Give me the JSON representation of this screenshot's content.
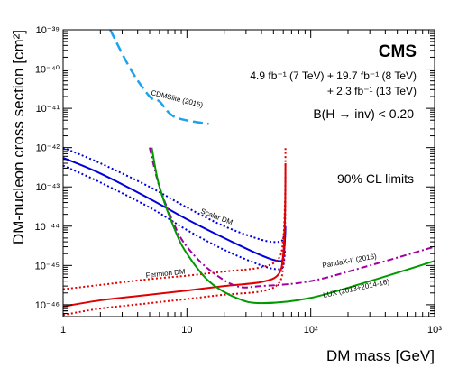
{
  "chart_data": {
    "type": "line",
    "title": "CMS",
    "xlabel": "DM mass [GeV]",
    "ylabel": "DM-nucleon cross section [cm²]",
    "xscale": "log",
    "yscale": "log",
    "xlim": [
      1,
      1000
    ],
    "ylim": [
      5e-47,
      1e-39
    ],
    "x_ticks": [
      1,
      10,
      100,
      1000
    ],
    "x_tick_labels": [
      "1",
      "10",
      "10²",
      "10³"
    ],
    "y_ticks": [
      1e-46,
      1e-45,
      1e-44,
      1e-43,
      1e-42,
      1e-41,
      1e-40,
      1e-39
    ],
    "y_tick_labels": [
      "10⁻⁴⁶",
      "10⁻⁴⁵",
      "10⁻⁴⁴",
      "10⁻⁴³",
      "10⁻⁴²",
      "10⁻⁴¹",
      "10⁻⁴⁰",
      "10⁻³⁹"
    ],
    "grid": false,
    "annotations": {
      "lumi_line1": "4.9 fb⁻¹ (7 TeV) + 19.7 fb⁻¹ (8 TeV)",
      "lumi_line2": "+ 2.3 fb⁻¹ (13 TeV)",
      "hinv": "B(H → inv) < 0.20",
      "cl": "90% CL limits"
    },
    "series": [
      {
        "name": "Scalar DM",
        "color": "#0000dd",
        "style": "solid",
        "x": [
          1,
          2,
          5,
          10,
          20,
          40,
          55,
          60,
          62,
          62.5
        ],
        "y": [
          5.5e-43,
          2.2e-43,
          5e-44,
          1.5e-44,
          5e-45,
          1.8e-45,
          1.3e-45,
          1.6e-45,
          5e-45,
          1e-44
        ]
      },
      {
        "name": "Scalar DM upper",
        "color": "#0000dd",
        "style": "dotted",
        "x": [
          1,
          2,
          5,
          10,
          20,
          40,
          55,
          60,
          62
        ],
        "y": [
          1e-42,
          4e-43,
          1e-43,
          3e-44,
          1e-44,
          4.5e-45,
          4e-45,
          5e-45,
          1e-44
        ]
      },
      {
        "name": "Scalar DM lower",
        "color": "#0000dd",
        "style": "dotted",
        "x": [
          1,
          2,
          5,
          10,
          20,
          40,
          55,
          60,
          62
        ],
        "y": [
          3.5e-43,
          1.3e-43,
          3e-44,
          8e-45,
          2.5e-45,
          1e-45,
          8e-46,
          1e-45,
          2.5e-45
        ]
      },
      {
        "name": "Fermion DM",
        "color": "#e00000",
        "style": "solid",
        "x": [
          1,
          2,
          5,
          10,
          20,
          40,
          55,
          60,
          62,
          62.5
        ],
        "y": [
          9e-47,
          1.3e-46,
          1.8e-46,
          2.3e-46,
          3e-46,
          3.8e-46,
          6e-46,
          2e-45,
          2e-44,
          4e-43
        ]
      },
      {
        "name": "Fermion DM upper",
        "color": "#e00000",
        "style": "dotted",
        "x": [
          1,
          2,
          5,
          10,
          20,
          40,
          55,
          60,
          62,
          62.5
        ],
        "y": [
          2.5e-46,
          3.2e-46,
          4.5e-46,
          5.5e-46,
          7e-46,
          9e-46,
          1.5e-45,
          5e-45,
          5e-44,
          1e-42
        ]
      },
      {
        "name": "Fermion DM lower",
        "color": "#e00000",
        "style": "dotted",
        "x": [
          1,
          2,
          5,
          10,
          20,
          40,
          55,
          60,
          62,
          62.5
        ],
        "y": [
          5.5e-47,
          8e-47,
          1.1e-46,
          1.4e-46,
          1.8e-46,
          2.2e-46,
          3.5e-46,
          1e-45,
          1e-44,
          2e-43
        ]
      },
      {
        "name": "CDMSlite (2015)",
        "color": "#1ca3ec",
        "style": "dashed",
        "x": [
          2.4,
          3.5,
          5,
          6,
          8,
          15
        ],
        "y": [
          1e-39,
          1e-40,
          2e-41,
          1.5e-41,
          6e-42,
          4e-42
        ]
      },
      {
        "name": "PandaX-II (2016)",
        "color": "#a000a0",
        "style": "dashdot",
        "x": [
          5,
          6,
          8,
          10,
          15,
          25,
          40,
          100,
          300,
          1000
        ],
        "y": [
          1e-42,
          1e-43,
          1e-44,
          3e-45,
          8e-46,
          3e-46,
          3e-46,
          4e-46,
          1e-45,
          3e-45
        ]
      },
      {
        "name": "LUX (2013+2014-16)",
        "color": "#009900",
        "style": "solid",
        "x": [
          5.2,
          6,
          8,
          10,
          15,
          25,
          40,
          100,
          300,
          1000
        ],
        "y": [
          1e-42,
          1e-43,
          8e-45,
          2e-45,
          4e-46,
          1.5e-46,
          1.1e-46,
          1.5e-46,
          4e-46,
          1.3e-45
        ]
      }
    ]
  }
}
